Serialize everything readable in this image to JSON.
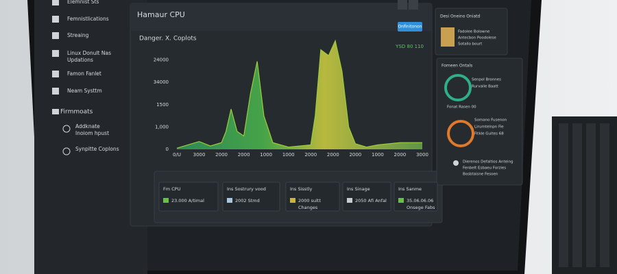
{
  "sidebar": {
    "items": [
      {
        "label": "Elemnist Sts"
      },
      {
        "label": "Femnistlications"
      },
      {
        "label": "Streaing"
      },
      {
        "label": "Linux Donult Nas",
        "sub": "Updations"
      },
      {
        "label": "Famon Fanlet"
      },
      {
        "label": "Neam Systtm"
      }
    ],
    "section": "Firmmoats",
    "subitems": [
      {
        "label": "Addknate",
        "sub": "Inoiom hpust"
      },
      {
        "label": "Synpitte Coplons"
      }
    ]
  },
  "main": {
    "title": "Hamaur CPU",
    "button": "Onfinitonon",
    "status": "YSD 80 110"
  },
  "chart_data": {
    "type": "area",
    "title": "Danger. X. Coplots",
    "x": [
      0,
      0.5,
      1,
      1.5,
      2,
      2.2,
      2.43,
      2.7,
      3,
      3.3,
      3.6,
      3.9,
      4.3,
      5,
      5.5,
      6,
      6.2,
      6.45,
      6.8,
      7.1,
      7.4,
      7.7,
      8,
      8.5,
      9,
      10,
      11
    ],
    "series": [
      {
        "name": "CPU",
        "color": "#9ccc3c",
        "values": [
          0.05,
          0.2,
          0.35,
          0.15,
          0.3,
          0.8,
          1.8,
          0.8,
          0.6,
          2.5,
          3.94,
          1.5,
          0.3,
          0.1,
          0.15,
          0.2,
          1.5,
          4.46,
          4.2,
          4.86,
          3.5,
          1.0,
          0.25,
          0.1,
          0.2,
          0.3,
          0.3
        ]
      }
    ],
    "xlim": [
      0,
      11
    ],
    "xticks": [
      {
        "value": 0,
        "label": "0/U"
      },
      {
        "value": 1,
        "label": "3000"
      },
      {
        "value": 2,
        "label": "2000"
      },
      {
        "value": 3,
        "label": "2000"
      },
      {
        "value": 4,
        "label": "1000"
      },
      {
        "value": 5,
        "label": "1000"
      },
      {
        "value": 6,
        "label": "2000"
      },
      {
        "value": 7,
        "label": "2000"
      },
      {
        "value": 8,
        "label": "2000"
      },
      {
        "value": 9,
        "label": "1000"
      },
      {
        "value": 10,
        "label": "2000"
      },
      {
        "value": 11,
        "label": "3000"
      }
    ],
    "ylim": [
      0,
      5
    ],
    "yticks": [
      {
        "value": 0,
        "label": "0"
      },
      {
        "value": 1,
        "label": "1,000"
      },
      {
        "value": 2,
        "label": "1500"
      },
      {
        "value": 3,
        "label": "34000"
      },
      {
        "value": 4,
        "label": "24000"
      }
    ],
    "grid": false
  },
  "stats": [
    {
      "label": "Fm CPU",
      "value": "23.000 A/timal",
      "color": "#6abf4b"
    },
    {
      "label": "Ins Sostrury vood",
      "value": "2002 Stmd",
      "color": "#a8c8e0"
    },
    {
      "label": "Ins Sisstly",
      "value": "2000 sultt",
      "extra": "Changes",
      "color": "#c9b53a"
    },
    {
      "label": "Ins Sinage",
      "value": "2050 Afi Anfal",
      "color": "#c8ccd0"
    },
    {
      "label": "Ins Sanme",
      "value": "35.06.06.06",
      "extra": "Onsege Fabs",
      "color": "#6abf4b"
    }
  ],
  "panel1": {
    "title": "Desi Oneino Oniatd",
    "lines": [
      "Fadolee Bolowne",
      "Antecbon Poodolese",
      "Sotallo bourt"
    ]
  },
  "panel2": {
    "title": "Fomeen Ontals",
    "gauge1": [
      "Senpol Bronnes",
      "Rurvalle Baatt",
      "Fonat Rasen 00"
    ],
    "gauge2": [
      "Somano Fusenon",
      "Lirumtelnpn Fie",
      "Fitkle Gultes 68"
    ],
    "footer": [
      "Dierenos Defaltios Anteing",
      "Fenbelt Esbaeu Forzies",
      "Bosbtaisne Fesoen"
    ]
  }
}
